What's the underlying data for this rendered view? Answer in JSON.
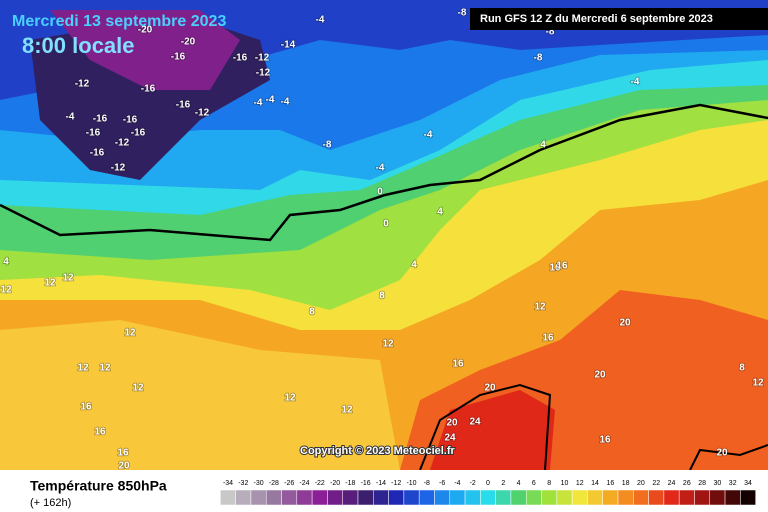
{
  "header": {
    "date": "Mercredi 13 septembre 2023",
    "time": "8:00 locale",
    "run": "Run GFS 12 Z du Mercredi 6 septembre 2023"
  },
  "copyright": "Copyright © 2023 Meteociel.fr",
  "legend": {
    "title": "Température 850hPa",
    "lead_time": "(+ 162h)",
    "scale": [
      -34,
      -32,
      -30,
      -28,
      -26,
      -24,
      -22,
      -20,
      -18,
      -16,
      -14,
      -12,
      -10,
      -8,
      -6,
      -4,
      -2,
      0,
      2,
      4,
      6,
      8,
      10,
      12,
      14,
      16,
      18,
      20,
      22,
      24,
      26,
      28,
      30,
      32,
      34
    ]
  },
  "map_labels": [
    -20,
    -20,
    -16,
    -16,
    -16,
    -12,
    -12,
    -14,
    -4,
    -8,
    -8,
    -8,
    -12,
    -16,
    -12,
    -4,
    -16,
    -16,
    -16,
    -16,
    -12,
    -16,
    -12,
    -4,
    -4,
    -4,
    -8,
    -4,
    -4,
    -4,
    4,
    0,
    0,
    4,
    4,
    8,
    8,
    12,
    12,
    12,
    12,
    12,
    12,
    16,
    16,
    16,
    20,
    12,
    12,
    12,
    12,
    16,
    16,
    16,
    16,
    20,
    20,
    20,
    20,
    24,
    24,
    16,
    20,
    12,
    8,
    4,
    12
  ]
}
